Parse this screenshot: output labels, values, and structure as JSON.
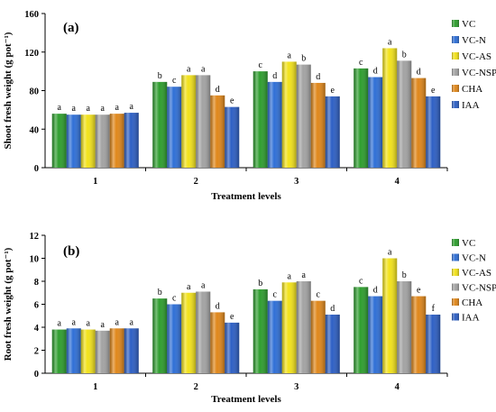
{
  "colors": {
    "VC": "#2e9e2e",
    "VC-N": "#2f6fd6",
    "VC-AS": "#f2e21a",
    "VC-NSP": "#a3a3a3",
    "CHA": "#e0871a",
    "IAA": "#2d5fc4"
  },
  "chart_data": [
    {
      "type": "bar",
      "panel": "(a)",
      "ylabel": "Shoot fresh weight (g pot⁻¹)",
      "xlabel": "Treatment levels",
      "categories": [
        "1",
        "2",
        "3",
        "4"
      ],
      "ylim": [
        0,
        160
      ],
      "yticks": [
        0,
        40,
        80,
        120,
        160
      ],
      "legend_position": "right",
      "grid": false,
      "series": [
        {
          "name": "VC",
          "values": [
            56,
            89,
            100,
            103
          ],
          "labels": [
            "a",
            "b",
            "c",
            "c"
          ]
        },
        {
          "name": "VC-N",
          "values": [
            55,
            84,
            89,
            94
          ],
          "labels": [
            "a",
            "c",
            "d",
            "d"
          ]
        },
        {
          "name": "VC-AS",
          "values": [
            55,
            96,
            110,
            124
          ],
          "labels": [
            "a",
            "a",
            "a",
            "a"
          ]
        },
        {
          "name": "VC-NSP",
          "values": [
            55,
            96,
            107,
            111
          ],
          "labels": [
            "a",
            "a",
            "b",
            "b"
          ]
        },
        {
          "name": "CHA",
          "values": [
            56,
            75,
            88,
            93
          ],
          "labels": [
            "a",
            "d",
            "d",
            "d"
          ]
        },
        {
          "name": "IAA",
          "values": [
            57,
            63,
            74,
            74
          ],
          "labels": [
            "a",
            "e",
            "e",
            "e"
          ]
        }
      ]
    },
    {
      "type": "bar",
      "panel": "(b)",
      "ylabel": "Root fresh weight (g pot⁻¹)",
      "xlabel": "Treatment levels",
      "categories": [
        "1",
        "2",
        "3",
        "4"
      ],
      "ylim": [
        0,
        12
      ],
      "yticks": [
        0,
        2,
        4,
        6,
        8,
        10,
        12
      ],
      "legend_position": "right",
      "grid": false,
      "series": [
        {
          "name": "VC",
          "values": [
            3.8,
            6.5,
            7.3,
            7.5
          ],
          "labels": [
            "a",
            "b",
            "b",
            "c"
          ]
        },
        {
          "name": "VC-N",
          "values": [
            3.9,
            6.0,
            6.3,
            6.7
          ],
          "labels": [
            "a",
            "c",
            "c",
            "d"
          ]
        },
        {
          "name": "VC-AS",
          "values": [
            3.8,
            7.0,
            7.9,
            10.0
          ],
          "labels": [
            "a",
            "a",
            "a",
            "a"
          ]
        },
        {
          "name": "VC-NSP",
          "values": [
            3.7,
            7.1,
            8.0,
            8.0
          ],
          "labels": [
            "a",
            "a",
            "a",
            "b"
          ]
        },
        {
          "name": "CHA",
          "values": [
            3.9,
            5.3,
            6.3,
            6.7
          ],
          "labels": [
            "a",
            "d",
            "c",
            "e"
          ]
        },
        {
          "name": "IAA",
          "values": [
            3.9,
            4.4,
            5.1,
            5.1
          ],
          "labels": [
            "a",
            "e",
            "d",
            "f"
          ]
        }
      ]
    }
  ]
}
